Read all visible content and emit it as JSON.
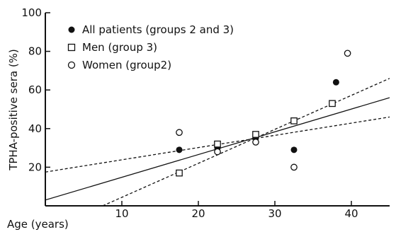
{
  "chart_data": {
    "type": "scatter",
    "title": "",
    "xlabel": "Age (years)",
    "ylabel": "TPHA-positive sera (%)",
    "xlim": [
      0,
      45
    ],
    "ylim": [
      0,
      100
    ],
    "x_ticks": [
      10,
      20,
      30,
      40
    ],
    "y_ticks": [
      20,
      40,
      60,
      80,
      100
    ],
    "legend_placement": "top-left",
    "grid": false,
    "series": [
      {
        "name": "All patients (groups 2 and 3)",
        "marker": "filled-circle",
        "points": [
          {
            "x": 17.5,
            "y": 29
          },
          {
            "x": 22.5,
            "y": 30
          },
          {
            "x": 27.5,
            "y": 35
          },
          {
            "x": 32.5,
            "y": 29
          },
          {
            "x": 38,
            "y": 64
          }
        ]
      },
      {
        "name": "Men (group 3)",
        "marker": "open-square",
        "points": [
          {
            "x": 17.5,
            "y": 17
          },
          {
            "x": 22.5,
            "y": 32
          },
          {
            "x": 27.5,
            "y": 37
          },
          {
            "x": 32.5,
            "y": 44
          },
          {
            "x": 37.5,
            "y": 53
          }
        ]
      },
      {
        "name": "Women (group2)",
        "marker": "open-circle",
        "points": [
          {
            "x": 17.5,
            "y": 38
          },
          {
            "x": 22.5,
            "y": 28
          },
          {
            "x": 27.5,
            "y": 33
          },
          {
            "x": 32.5,
            "y": 20
          },
          {
            "x": 39.5,
            "y": 79
          }
        ]
      }
    ],
    "regression_lines": [
      {
        "style": "solid",
        "from": {
          "x": 0,
          "y": 3
        },
        "to": {
          "x": 45,
          "y": 56
        }
      },
      {
        "style": "dashed",
        "from": {
          "x": 0,
          "y": 17.5
        },
        "to": {
          "x": 45,
          "y": 46
        }
      },
      {
        "style": "dashed",
        "from": {
          "x": 7.5,
          "y": 0
        },
        "to": {
          "x": 45,
          "y": 66
        }
      }
    ]
  }
}
